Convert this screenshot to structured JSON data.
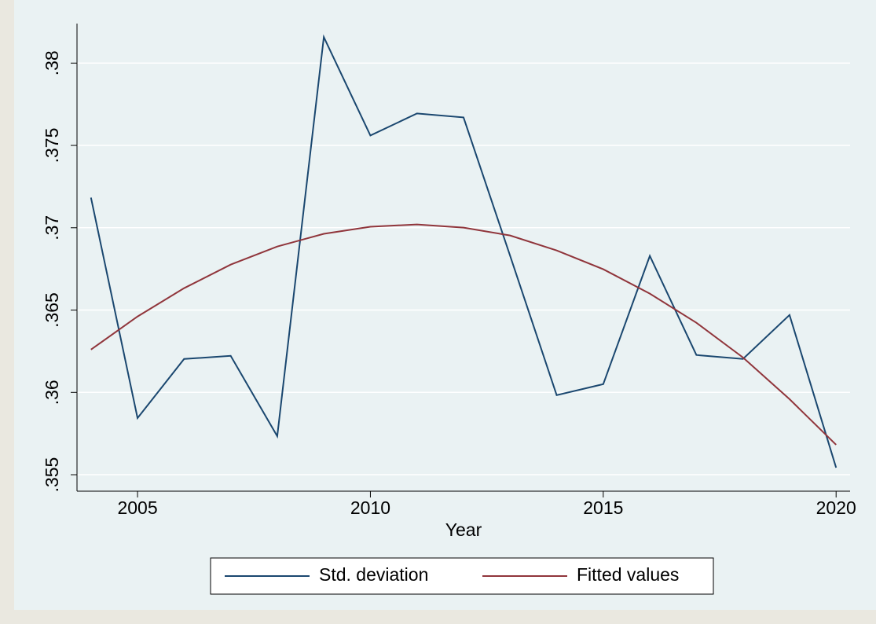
{
  "chart_data": {
    "type": "line",
    "x": [
      2004,
      2005,
      2006,
      2007,
      2008,
      2009,
      2010,
      2011,
      2012,
      2013,
      2014,
      2015,
      2016,
      2017,
      2018,
      2019,
      2020
    ],
    "series": [
      {
        "name": "Std. deviation",
        "color": "#1a476f",
        "values": [
          0.37183,
          0.35844,
          0.36203,
          0.36222,
          0.35734,
          0.38158,
          0.3756,
          0.37694,
          0.3767,
          0.3683,
          0.35983,
          0.3605,
          0.36829,
          0.36227,
          0.36203,
          0.3647,
          0.35543
        ]
      },
      {
        "name": "Fitted values",
        "color": "#90353b",
        "values": [
          0.3626,
          0.36461,
          0.36633,
          0.36776,
          0.36886,
          0.36963,
          0.37006,
          0.3702,
          0.37001,
          0.36953,
          0.36862,
          0.36748,
          0.366,
          0.36423,
          0.36212,
          0.35959,
          0.35682
        ]
      }
    ],
    "x_label": "Year",
    "xlim": [
      2003.7,
      2020.3
    ],
    "xticks": [
      2005,
      2010,
      2015,
      2020
    ],
    "ylim": [
      0.354,
      0.3824
    ],
    "yticks": [
      {
        "value": 0.355,
        "label": ".355"
      },
      {
        "value": 0.36,
        "label": ".36"
      },
      {
        "value": 0.365,
        "label": ".365"
      },
      {
        "value": 0.37,
        "label": ".37"
      },
      {
        "value": 0.375,
        "label": ".375"
      },
      {
        "value": 0.38,
        "label": ".38"
      }
    ],
    "grid": true,
    "legend": "bottom"
  }
}
